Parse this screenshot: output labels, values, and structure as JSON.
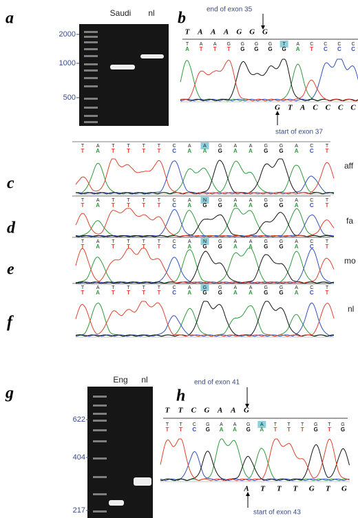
{
  "panel_labels": [
    "a",
    "b",
    "c",
    "d",
    "e",
    "f",
    "g",
    "h"
  ],
  "gel_a": {
    "lanes": [
      "Saudi",
      "nl"
    ],
    "ladder": [
      "2000",
      "1000",
      "500"
    ]
  },
  "sequence_b": {
    "end_label": "end of exon 35",
    "reference": [
      "T",
      "A",
      "A",
      "A",
      "G",
      "G",
      "G"
    ],
    "bases": [
      "T",
      "A",
      "A",
      "G",
      "G",
      "G",
      "G",
      "T",
      "A",
      "C",
      "C",
      "C",
      "C"
    ],
    "calls": [
      "A",
      "T",
      "T",
      "T",
      "G",
      "G",
      "G",
      "G",
      "A",
      "T",
      "C",
      "C",
      "C"
    ],
    "next_exon": [
      "G",
      "T",
      "A",
      "C",
      "C",
      "C",
      "C"
    ],
    "start_label": "start of exon 37"
  },
  "traces": [
    {
      "sample": "aff",
      "bases": [
        "T",
        "A",
        "T",
        "T",
        "T",
        "T",
        "C",
        "A",
        "A",
        "G",
        "A",
        "A",
        "G",
        "G",
        "A",
        "C",
        "T"
      ],
      "calls": [
        "T",
        "A",
        "T",
        "T",
        "T",
        "T",
        "C",
        "A",
        "A",
        "G",
        "A",
        "A",
        "G",
        "G",
        "A",
        "C",
        "T"
      ]
    },
    {
      "sample": "fa",
      "bases": [
        "T",
        "A",
        "T",
        "T",
        "T",
        "T",
        "C",
        "A",
        "N",
        "G",
        "A",
        "A",
        "G",
        "G",
        "A",
        "C",
        "T"
      ],
      "calls": [
        "T",
        "A",
        "T",
        "T",
        "T",
        "T",
        "C",
        "A",
        "G",
        "G",
        "A",
        "A",
        "G",
        "G",
        "A",
        "C",
        "T"
      ]
    },
    {
      "sample": "mo",
      "bases": [
        "T",
        "A",
        "T",
        "T",
        "T",
        "T",
        "C",
        "A",
        "N",
        "G",
        "A",
        "A",
        "G",
        "G",
        "A",
        "C",
        "T"
      ],
      "calls": [
        "T",
        "A",
        "T",
        "T",
        "T",
        "T",
        "C",
        "A",
        "G",
        "G",
        "A",
        "A",
        "G",
        "G",
        "A",
        "C",
        "T"
      ]
    },
    {
      "sample": "nl",
      "bases": [
        "T",
        "A",
        "T",
        "T",
        "T",
        "T",
        "C",
        "A",
        "G",
        "G",
        "A",
        "A",
        "G",
        "G",
        "A",
        "C",
        "T"
      ],
      "calls": [
        "T",
        "A",
        "T",
        "T",
        "T",
        "T",
        "C",
        "A",
        "G",
        "G",
        "A",
        "A",
        "G",
        "G",
        "A",
        "C",
        "T"
      ]
    }
  ],
  "gel_g": {
    "lanes": [
      "Eng",
      "nl"
    ],
    "ladder": [
      "622",
      "404",
      "217"
    ]
  },
  "sequence_h": {
    "end_label": "end of exon 41",
    "reference": [
      "T",
      "T",
      "C",
      "G",
      "A",
      "A",
      "G"
    ],
    "bases": [
      "T",
      "T",
      "C",
      "G",
      "A",
      "A",
      "G",
      "A",
      "T",
      "T",
      "T",
      "G",
      "T",
      "G"
    ],
    "calls": [
      "T",
      "T",
      "C",
      "G",
      "A",
      "A",
      "G",
      "A",
      "T",
      "T",
      "T",
      "G",
      "T",
      "G"
    ],
    "next_exon": [
      "A",
      "T",
      "T",
      "T",
      "G",
      "T",
      "G"
    ],
    "start_label": "start of exon 43"
  }
}
